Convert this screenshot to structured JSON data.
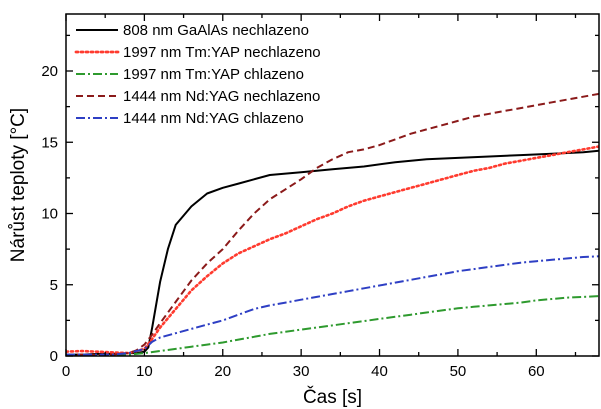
{
  "chart_data": {
    "type": "line",
    "title": "",
    "xlabel": "Čas [s]",
    "ylabel": "Nárůst teploty [°C]",
    "xlim": [
      0,
      68
    ],
    "ylim": [
      0,
      24
    ],
    "xticks": [
      0,
      10,
      20,
      30,
      40,
      50,
      60
    ],
    "yticks": [
      0,
      5,
      10,
      15,
      20
    ],
    "grid": false,
    "legend_position": "top-left",
    "series": [
      {
        "name": "808 nm   GaAlAs   nechlazeno",
        "label_parts": [
          "808 nm",
          "GaAlAs",
          "nechlazeno"
        ],
        "color": "#000000",
        "dash": "solid",
        "x": [
          0,
          2,
          4,
          6,
          8,
          9,
          10,
          10.5,
          11,
          12,
          13,
          14,
          16,
          18,
          20,
          22,
          24,
          26,
          30,
          34,
          38,
          42,
          46,
          50,
          54,
          58,
          62,
          66,
          68
        ],
        "y": [
          0.1,
          0.1,
          0.15,
          0.15,
          0.2,
          0.2,
          0.3,
          0.6,
          2.0,
          5.2,
          7.5,
          9.2,
          10.5,
          11.4,
          11.8,
          12.1,
          12.4,
          12.7,
          12.9,
          13.1,
          13.3,
          13.6,
          13.8,
          13.9,
          14.0,
          14.1,
          14.2,
          14.3,
          14.4
        ]
      },
      {
        "name": "1997 nm   Tm:YAP   nechlazeno",
        "label_parts": [
          "1997 nm",
          "Tm:YAP",
          "nechlazeno"
        ],
        "color": "#ff3b2f",
        "dash": "dotted",
        "x": [
          0,
          2,
          4,
          6,
          8,
          10,
          11,
          12,
          14,
          16,
          18,
          20,
          22,
          24,
          26,
          28,
          30,
          32,
          34,
          36,
          38,
          40,
          42,
          44,
          46,
          48,
          50,
          52,
          54,
          56,
          58,
          60,
          62,
          64,
          66,
          68
        ],
        "y": [
          0.3,
          0.35,
          0.3,
          0.25,
          0.2,
          0.5,
          1.2,
          2.0,
          3.3,
          4.6,
          5.6,
          6.5,
          7.2,
          7.7,
          8.2,
          8.6,
          9.1,
          9.6,
          10.0,
          10.5,
          10.9,
          11.2,
          11.5,
          11.8,
          12.1,
          12.4,
          12.7,
          13.0,
          13.2,
          13.5,
          13.7,
          13.9,
          14.1,
          14.3,
          14.5,
          14.7
        ]
      },
      {
        "name": "1997 nm   Tm:YAP   chlazeno",
        "label_parts": [
          "1997 nm",
          "Tm:YAP",
          "chlazeno"
        ],
        "color": "#2e9a2e",
        "dash": "dashdot",
        "x": [
          0,
          2,
          4,
          6,
          8,
          10,
          12,
          14,
          16,
          18,
          20,
          22,
          24,
          26,
          28,
          30,
          32,
          34,
          36,
          38,
          40,
          42,
          44,
          46,
          48,
          50,
          52,
          54,
          56,
          58,
          60,
          62,
          64,
          66,
          68
        ],
        "y": [
          0.1,
          0.1,
          0.1,
          0.1,
          0.1,
          0.2,
          0.35,
          0.5,
          0.65,
          0.8,
          0.95,
          1.15,
          1.35,
          1.55,
          1.7,
          1.85,
          2.0,
          2.15,
          2.3,
          2.45,
          2.6,
          2.75,
          2.9,
          3.05,
          3.2,
          3.35,
          3.45,
          3.55,
          3.65,
          3.75,
          3.9,
          4.0,
          4.1,
          4.15,
          4.2
        ]
      },
      {
        "name": "1444 nm   Nd:YAG   nechlazeno",
        "label_parts": [
          "1444 nm",
          "Nd:YAG",
          "nechlazeno"
        ],
        "color": "#8b1a1a",
        "dash": "dashed",
        "x": [
          0,
          2,
          4,
          6,
          8,
          9,
          10,
          11,
          12,
          14,
          16,
          18,
          20,
          22,
          24,
          26,
          28,
          30,
          32,
          34,
          36,
          38,
          40,
          42,
          44,
          46,
          48,
          50,
          52,
          54,
          56,
          58,
          60,
          62,
          64,
          66,
          68
        ],
        "y": [
          0.1,
          0.1,
          0.1,
          0.1,
          0.2,
          0.4,
          0.8,
          1.5,
          2.3,
          3.8,
          5.3,
          6.5,
          7.5,
          8.8,
          10.0,
          11.0,
          11.7,
          12.4,
          13.2,
          13.8,
          14.3,
          14.5,
          14.8,
          15.2,
          15.6,
          15.9,
          16.2,
          16.5,
          16.8,
          17.0,
          17.2,
          17.4,
          17.6,
          17.8,
          18.0,
          18.2,
          18.4
        ]
      },
      {
        "name": "1444 nm   Nd:YAG   chlazeno",
        "label_parts": [
          "1444 nm",
          "Nd:YAG",
          "chlazeno"
        ],
        "color": "#2e3fc4",
        "dash": "dashdot",
        "x": [
          0,
          2,
          4,
          6,
          8,
          10,
          11,
          12,
          14,
          16,
          18,
          20,
          22,
          24,
          26,
          28,
          30,
          32,
          34,
          36,
          38,
          40,
          42,
          44,
          46,
          48,
          50,
          52,
          54,
          56,
          58,
          60,
          62,
          64,
          66,
          68
        ],
        "y": [
          0.1,
          0.1,
          0.1,
          0.1,
          0.2,
          0.5,
          1.0,
          1.3,
          1.6,
          1.9,
          2.2,
          2.5,
          2.9,
          3.3,
          3.55,
          3.75,
          3.95,
          4.15,
          4.35,
          4.55,
          4.75,
          4.95,
          5.15,
          5.35,
          5.55,
          5.75,
          5.95,
          6.1,
          6.25,
          6.4,
          6.55,
          6.65,
          6.75,
          6.85,
          6.95,
          7.0
        ]
      }
    ]
  }
}
